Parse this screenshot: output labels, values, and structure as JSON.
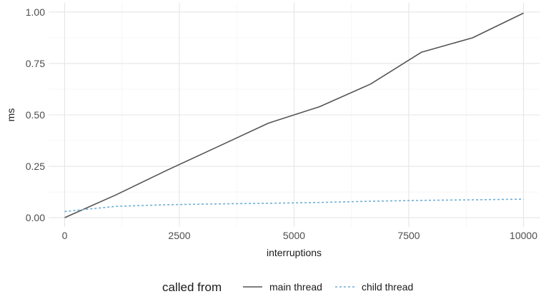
{
  "chart_data": {
    "type": "line",
    "xlabel": "interruptions",
    "ylabel": "ms",
    "xlim": [
      -350,
      10350
    ],
    "ylim": [
      -0.045,
      1.045
    ],
    "x_ticks": [
      0,
      2500,
      5000,
      7500,
      10000
    ],
    "x_tick_labels": [
      "0",
      "2500",
      "5000",
      "7500",
      "10000"
    ],
    "y_ticks": [
      0,
      0.25,
      0.5,
      0.75,
      1.0
    ],
    "y_tick_labels": [
      "0.00",
      "0.25",
      "0.50",
      "0.75",
      "1.00"
    ],
    "grid": true,
    "legend": {
      "title": "called from",
      "position": "bottom"
    },
    "series": [
      {
        "name": "main thread",
        "color": "#555555",
        "dash": "solid",
        "x": [
          0,
          1111,
          2222,
          3333,
          4444,
          5556,
          6667,
          7778,
          8889,
          10000
        ],
        "y": [
          0.0,
          0.11,
          0.23,
          0.345,
          0.46,
          0.54,
          0.65,
          0.805,
          0.875,
          0.995
        ]
      },
      {
        "name": "child thread",
        "color": "#6baed6",
        "dash": "dashed",
        "x": [
          0,
          1111,
          2222,
          3333,
          4444,
          5556,
          6667,
          7778,
          8889,
          10000
        ],
        "y": [
          0.03,
          0.055,
          0.063,
          0.067,
          0.07,
          0.074,
          0.08,
          0.084,
          0.087,
          0.09
        ]
      }
    ]
  }
}
